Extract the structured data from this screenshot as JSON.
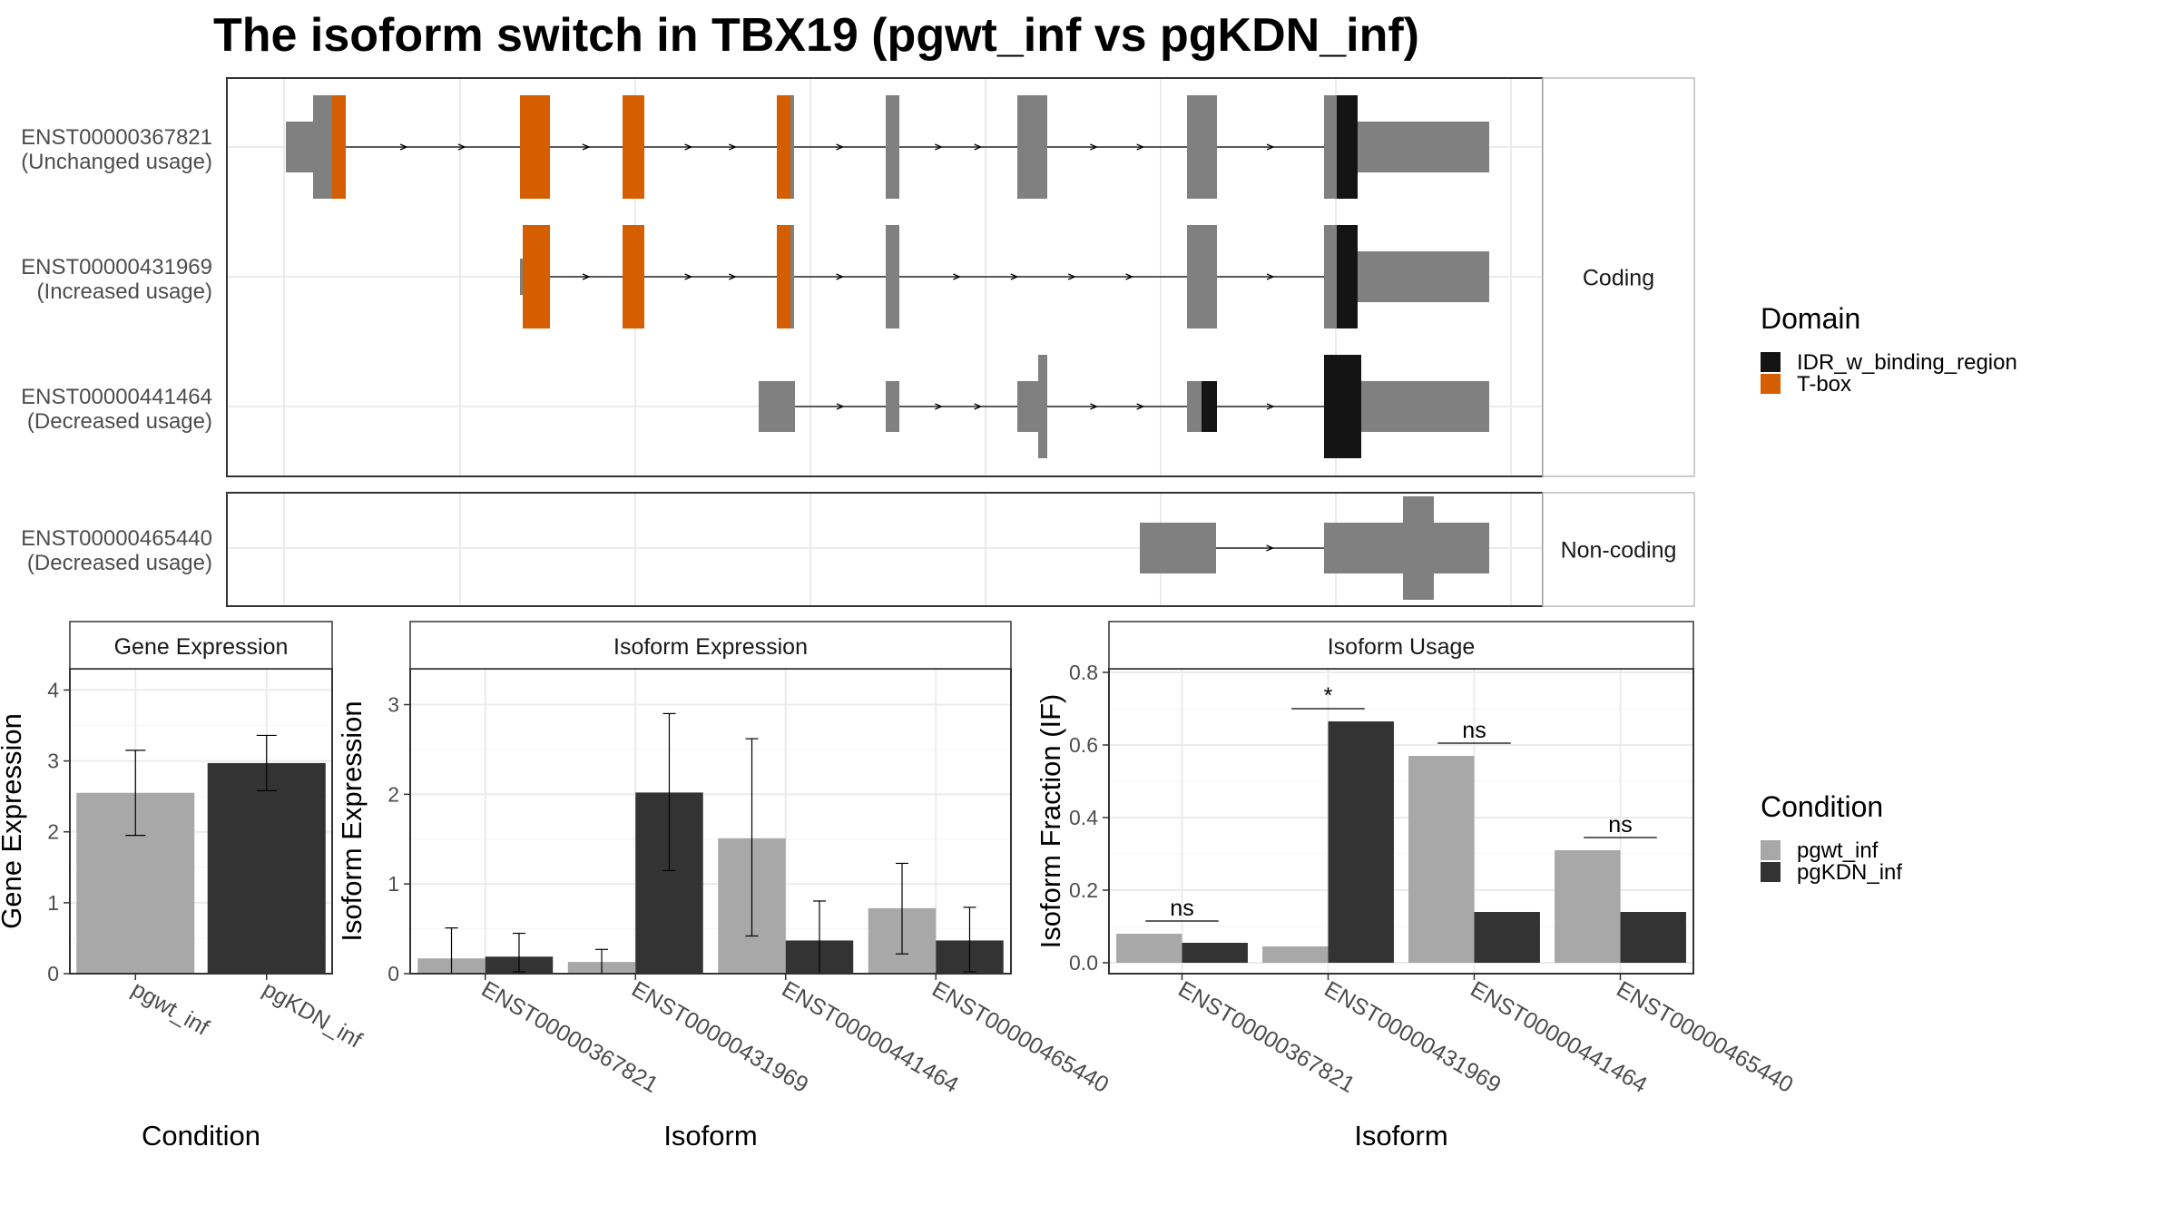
{
  "title": "The isoform switch in TBX19 (pgwt_inf vs pgKDN_inf)",
  "colors": {
    "exon": "#808080",
    "tbox": "#D55E00",
    "idr": "#141414",
    "pgwt_inf": "#A8A8A8",
    "pgKDN_inf": "#333333",
    "grid": "#EBEBEB",
    "border": "#333333",
    "strip_fill": "#FFFFFF"
  },
  "legends": {
    "domain": {
      "title": "Domain",
      "items": [
        {
          "label": "IDR_w_binding_region",
          "color": "#141414"
        },
        {
          "label": "T-box",
          "color": "#D55E00"
        }
      ]
    },
    "condition": {
      "title": "Condition",
      "items": [
        {
          "label": "pgwt_inf",
          "color": "#A8A8A8"
        },
        {
          "label": "pgKDN_inf",
          "color": "#333333"
        }
      ]
    }
  },
  "chart_data": [
    {
      "type": "gene-structure",
      "panels": [
        {
          "label": "Coding",
          "isoforms": [
            {
              "id": "ENST00000367821",
              "usage": "(Unchanged usage)"
            },
            {
              "id": "ENST00000431969",
              "usage": "(Increased usage)"
            },
            {
              "id": "ENST00000441464",
              "usage": "(Decreased usage)"
            }
          ]
        },
        {
          "label": "Non-coding",
          "isoforms": [
            {
              "id": "ENST00000465440",
              "usage": "(Decreased usage)"
            }
          ]
        }
      ]
    },
    {
      "type": "bar",
      "title": "Gene Expression",
      "xlabel": "Condition",
      "ylabel": "Gene Expression",
      "ylim": [
        0,
        4.3
      ],
      "yticks": [
        0,
        1,
        2,
        3,
        4
      ],
      "categories": [
        "pgwt_inf",
        "pgKDN_inf"
      ],
      "values": [
        2.55,
        2.97
      ],
      "errors": [
        [
          1.95,
          3.15
        ],
        [
          2.58,
          3.36
        ]
      ]
    },
    {
      "type": "bar",
      "title": "Isoform Expression",
      "xlabel": "Isoform",
      "ylabel": "Isoform Expression",
      "ylim": [
        0,
        3.4
      ],
      "yticks": [
        0,
        1,
        2,
        3
      ],
      "categories": [
        "ENST00000367821",
        "ENST00000431969",
        "ENST00000441464",
        "ENST00000465440"
      ],
      "series": [
        {
          "name": "pgwt_inf",
          "values": [
            0.17,
            0.13,
            1.51,
            0.73
          ],
          "errors": [
            [
              0.0,
              0.51
            ],
            [
              0.0,
              0.27
            ],
            [
              0.42,
              2.62
            ],
            [
              0.22,
              1.23
            ]
          ]
        },
        {
          "name": "pgKDN_inf",
          "values": [
            0.19,
            2.02,
            0.37,
            0.37
          ],
          "errors": [
            [
              0.02,
              0.45
            ],
            [
              1.15,
              2.9
            ],
            [
              0.0,
              0.81
            ],
            [
              0.02,
              0.74
            ]
          ]
        }
      ]
    },
    {
      "type": "bar",
      "title": "Isoform Usage",
      "xlabel": "Isoform",
      "ylabel": "Isoform Fraction (IF)",
      "ylim": [
        -0.03,
        0.81
      ],
      "yticks": [
        0.0,
        0.2,
        0.4,
        0.6,
        0.8
      ],
      "categories": [
        "ENST00000367821",
        "ENST00000431969",
        "ENST00000441464",
        "ENST00000465440"
      ],
      "series": [
        {
          "name": "pgwt_inf",
          "values": [
            0.08,
            0.045,
            0.57,
            0.31
          ]
        },
        {
          "name": "pgKDN_inf",
          "values": [
            0.055,
            0.665,
            0.14,
            0.14
          ]
        }
      ],
      "significance": [
        {
          "label": "ns",
          "y": 0.115
        },
        {
          "label": "*",
          "y": 0.7
        },
        {
          "label": "ns",
          "y": 0.605
        },
        {
          "label": "ns",
          "y": 0.345
        }
      ]
    }
  ]
}
